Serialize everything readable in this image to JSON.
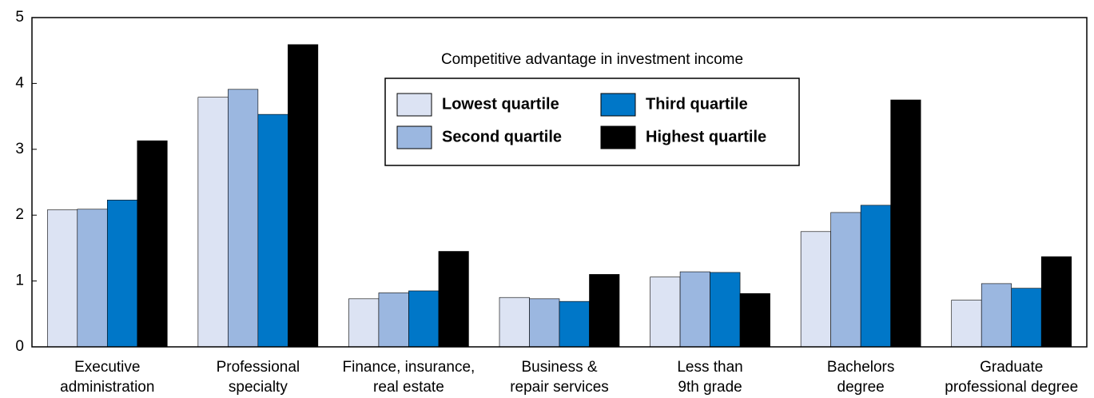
{
  "chart_data": {
    "type": "bar",
    "legend_title": "Competitive advantage in investment income",
    "categories": [
      [
        "Executive",
        "administration"
      ],
      [
        "Professional",
        "specialty"
      ],
      [
        "Finance, insurance,",
        "real estate"
      ],
      [
        "Business &",
        "repair services"
      ],
      [
        "Less than",
        "9th grade"
      ],
      [
        "Bachelors",
        "degree"
      ],
      [
        "Graduate",
        "professional degree"
      ]
    ],
    "series": [
      {
        "name": "Lowest quartile",
        "color": "#dce3f3",
        "values": [
          2.08,
          3.79,
          0.73,
          0.75,
          1.06,
          1.75,
          0.71
        ]
      },
      {
        "name": "Second quartile",
        "color": "#9bb7e0",
        "values": [
          2.09,
          3.91,
          0.82,
          0.73,
          1.14,
          2.04,
          0.96
        ]
      },
      {
        "name": "Third quartile",
        "color": "#0077c8",
        "values": [
          2.23,
          3.53,
          0.85,
          0.69,
          1.13,
          2.15,
          0.89
        ]
      },
      {
        "name": "Highest quartile",
        "color": "#000000",
        "values": [
          3.13,
          4.59,
          1.45,
          1.1,
          0.81,
          3.75,
          1.37
        ]
      }
    ],
    "ylim": [
      0,
      5
    ],
    "yticks": [
      0,
      1,
      2,
      3,
      4,
      5
    ],
    "grid": false
  }
}
